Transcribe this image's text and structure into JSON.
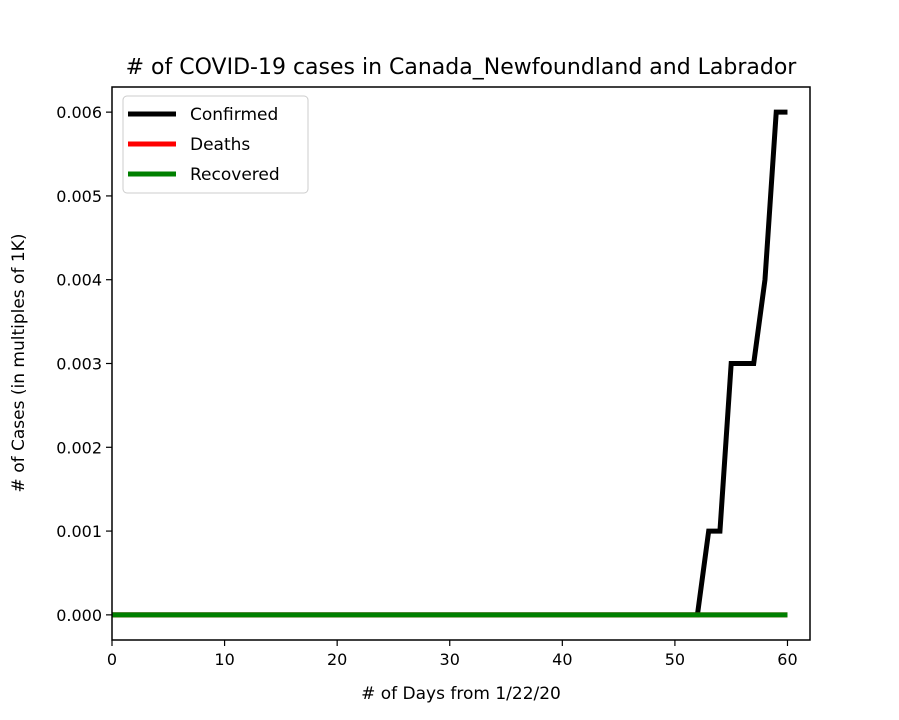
{
  "chart_data": {
    "type": "line",
    "title": "# of COVID-19 cases in Canada_Newfoundland and Labrador",
    "xlabel": "# of Days from 1/22/20",
    "ylabel": "# of Cases (in multiples of 1K)",
    "xlim": [
      0,
      62
    ],
    "ylim": [
      -0.0003,
      0.0063
    ],
    "xticks": [
      0,
      10,
      20,
      30,
      40,
      50,
      60
    ],
    "xtick_labels": [
      "0",
      "10",
      "20",
      "30",
      "40",
      "50",
      "60"
    ],
    "yticks": [
      0,
      0.001,
      0.002,
      0.003,
      0.004,
      0.005,
      0.006
    ],
    "ytick_labels": [
      "0.000",
      "0.001",
      "0.002",
      "0.003",
      "0.004",
      "0.005",
      "0.006"
    ],
    "grid": false,
    "legend_position": "top-left",
    "x": [
      0,
      1,
      2,
      3,
      4,
      5,
      6,
      7,
      8,
      9,
      10,
      11,
      12,
      13,
      14,
      15,
      16,
      17,
      18,
      19,
      20,
      21,
      22,
      23,
      24,
      25,
      26,
      27,
      28,
      29,
      30,
      31,
      32,
      33,
      34,
      35,
      36,
      37,
      38,
      39,
      40,
      41,
      42,
      43,
      44,
      45,
      46,
      47,
      48,
      49,
      50,
      51,
      52,
      53,
      54,
      55,
      56,
      57,
      58,
      59,
      60
    ],
    "series": [
      {
        "name": "Confirmed",
        "color": "#000000",
        "values": [
          0,
          0,
          0,
          0,
          0,
          0,
          0,
          0,
          0,
          0,
          0,
          0,
          0,
          0,
          0,
          0,
          0,
          0,
          0,
          0,
          0,
          0,
          0,
          0,
          0,
          0,
          0,
          0,
          0,
          0,
          0,
          0,
          0,
          0,
          0,
          0,
          0,
          0,
          0,
          0,
          0,
          0,
          0,
          0,
          0,
          0,
          0,
          0,
          0,
          0,
          0,
          0,
          0,
          0.001,
          0.001,
          0.003,
          0.003,
          0.003,
          0.004,
          0.006,
          0.006
        ]
      },
      {
        "name": "Deaths",
        "color": "#ff0000",
        "values": [
          0,
          0,
          0,
          0,
          0,
          0,
          0,
          0,
          0,
          0,
          0,
          0,
          0,
          0,
          0,
          0,
          0,
          0,
          0,
          0,
          0,
          0,
          0,
          0,
          0,
          0,
          0,
          0,
          0,
          0,
          0,
          0,
          0,
          0,
          0,
          0,
          0,
          0,
          0,
          0,
          0,
          0,
          0,
          0,
          0,
          0,
          0,
          0,
          0,
          0,
          0,
          0,
          0,
          0,
          0,
          0,
          0,
          0,
          0,
          0,
          0
        ]
      },
      {
        "name": "Recovered",
        "color": "#008000",
        "values": [
          0,
          0,
          0,
          0,
          0,
          0,
          0,
          0,
          0,
          0,
          0,
          0,
          0,
          0,
          0,
          0,
          0,
          0,
          0,
          0,
          0,
          0,
          0,
          0,
          0,
          0,
          0,
          0,
          0,
          0,
          0,
          0,
          0,
          0,
          0,
          0,
          0,
          0,
          0,
          0,
          0,
          0,
          0,
          0,
          0,
          0,
          0,
          0,
          0,
          0,
          0,
          0,
          0,
          0,
          0,
          0,
          0,
          0,
          0,
          0,
          0
        ]
      }
    ]
  }
}
